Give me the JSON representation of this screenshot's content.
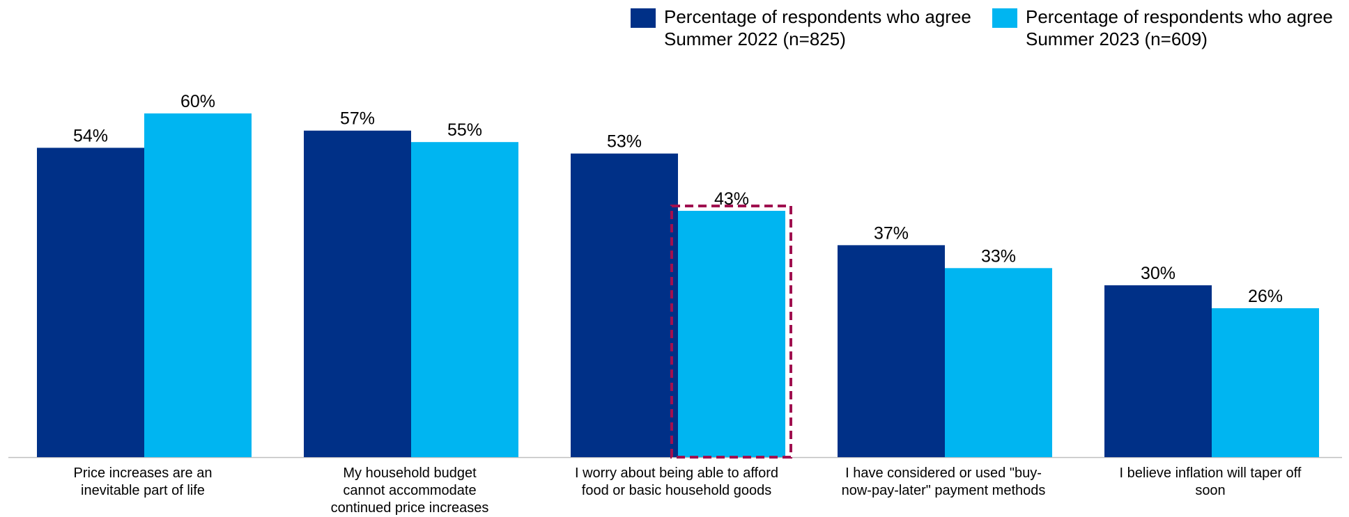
{
  "chart_data": {
    "type": "bar",
    "categories": [
      [
        "Price increases are an",
        "inevitable part of life"
      ],
      [
        "My household budget",
        "cannot accommodate",
        "continued price increases"
      ],
      [
        "I worry about being able to afford",
        "food or basic household goods"
      ],
      [
        "I have considered or used \"buy-",
        "now-pay-later\" payment methods"
      ],
      [
        "I believe inflation will taper off soon"
      ]
    ],
    "series": [
      {
        "name_lines": [
          "Percentage of respondents who agree",
          "Summer 2022 (n=825)"
        ],
        "color": "#003087",
        "values": [
          54,
          57,
          53,
          37,
          30
        ],
        "labels": [
          "54%",
          "57%",
          "53%",
          "37%",
          "30%"
        ]
      },
      {
        "name_lines": [
          "Percentage of respondents who agree",
          "Summer 2023 (n=609)"
        ],
        "color": "#00B5F1",
        "values": [
          60,
          55,
          43,
          33,
          26
        ],
        "labels": [
          "60%",
          "55%",
          "43%",
          "33%",
          "26%"
        ]
      }
    ],
    "ylim": [
      0,
      67
    ],
    "grid": false,
    "legend_position": "top-right",
    "highlight": {
      "series_index": 1,
      "category_index": 2,
      "style": "dashed-box",
      "color": "#A0104F"
    },
    "axis_color": "#BFBFBF"
  }
}
